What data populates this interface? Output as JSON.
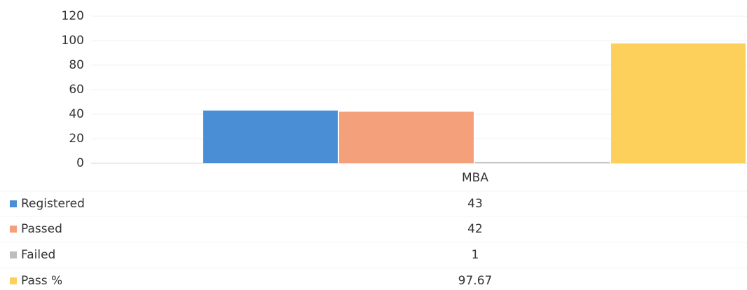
{
  "chart_data": {
    "type": "bar",
    "categories": [
      "MBA"
    ],
    "series": [
      {
        "name": "Registered",
        "color": "#4a8fd6",
        "values": [
          43
        ]
      },
      {
        "name": "Passed",
        "color": "#f4a07a",
        "values": [
          42
        ]
      },
      {
        "name": "Failed",
        "color": "#bdbdbd",
        "values": [
          1
        ]
      },
      {
        "name": "Pass %",
        "color": "#fcd05a",
        "values": [
          97.67
        ]
      }
    ],
    "ylim": [
      0,
      120
    ],
    "yticks": [
      0,
      20,
      40,
      60,
      80,
      100,
      120
    ],
    "grid": true
  }
}
